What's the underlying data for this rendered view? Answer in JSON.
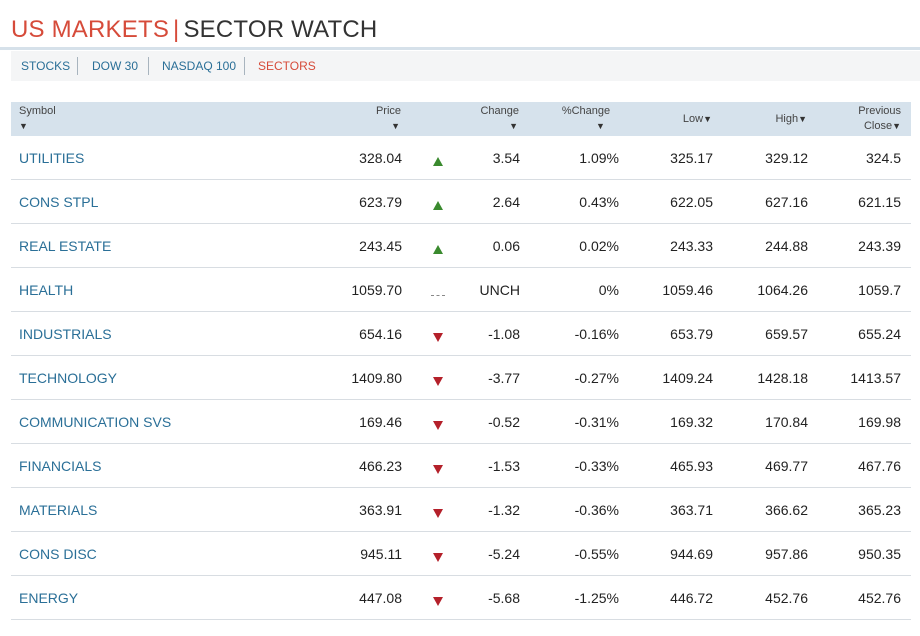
{
  "header": {
    "title_part1": "US MARKETS",
    "separator": "|",
    "title_part2": "SECTOR WATCH"
  },
  "nav": {
    "tabs": [
      {
        "label": "STOCKS",
        "active": false
      },
      {
        "label": "DOW 30",
        "active": false
      },
      {
        "label": "NASDAQ 100",
        "active": false
      },
      {
        "label": "SECTORS",
        "active": true
      }
    ]
  },
  "table": {
    "columns": {
      "symbol": "Symbol",
      "price": "Price",
      "change": "Change",
      "pct_change": "%Change",
      "low": "Low",
      "high": "High",
      "prev_close_1": "Previous",
      "prev_close_2": "Close",
      "sort_arrow": "▼"
    },
    "rows": [
      {
        "symbol": "UTILITIES",
        "price": "328.04",
        "direction": "up",
        "change": "3.54",
        "pct": "1.09%",
        "low": "325.17",
        "high": "329.12",
        "prev": "324.5"
      },
      {
        "symbol": "CONS STPL",
        "price": "623.79",
        "direction": "up",
        "change": "2.64",
        "pct": "0.43%",
        "low": "622.05",
        "high": "627.16",
        "prev": "621.15"
      },
      {
        "symbol": "REAL ESTATE",
        "price": "243.45",
        "direction": "up",
        "change": "0.06",
        "pct": "0.02%",
        "low": "243.33",
        "high": "244.88",
        "prev": "243.39"
      },
      {
        "symbol": "HEALTH",
        "price": "1059.70",
        "direction": "unch",
        "change": "UNCH",
        "pct": "0%",
        "low": "1059.46",
        "high": "1064.26",
        "prev": "1059.7"
      },
      {
        "symbol": "INDUSTRIALS",
        "price": "654.16",
        "direction": "down",
        "change": "-1.08",
        "pct": "-0.16%",
        "low": "653.79",
        "high": "659.57",
        "prev": "655.24"
      },
      {
        "symbol": "TECHNOLOGY",
        "price": "1409.80",
        "direction": "down",
        "change": "-3.77",
        "pct": "-0.27%",
        "low": "1409.24",
        "high": "1428.18",
        "prev": "1413.57"
      },
      {
        "symbol": "COMMUNICATION SVS",
        "price": "169.46",
        "direction": "down",
        "change": "-0.52",
        "pct": "-0.31%",
        "low": "169.32",
        "high": "170.84",
        "prev": "169.98"
      },
      {
        "symbol": "FINANCIALS",
        "price": "466.23",
        "direction": "down",
        "change": "-1.53",
        "pct": "-0.33%",
        "low": "465.93",
        "high": "469.77",
        "prev": "467.76"
      },
      {
        "symbol": "MATERIALS",
        "price": "363.91",
        "direction": "down",
        "change": "-1.32",
        "pct": "-0.36%",
        "low": "363.71",
        "high": "366.62",
        "prev": "365.23"
      },
      {
        "symbol": "CONS DISC",
        "price": "945.11",
        "direction": "down",
        "change": "-5.24",
        "pct": "-0.55%",
        "low": "944.69",
        "high": "957.86",
        "prev": "950.35"
      },
      {
        "symbol": "ENERGY",
        "price": "447.08",
        "direction": "down",
        "change": "-5.68",
        "pct": "-1.25%",
        "low": "446.72",
        "high": "452.76",
        "prev": "452.76"
      }
    ]
  },
  "colors": {
    "accent_red": "#d64b3a",
    "link_blue": "#2a6f97",
    "up_green": "#3a8a2e",
    "down_red": "#b4202a",
    "header_bg": "#d6e2ec"
  },
  "icons": {
    "up": "triangle-up-icon",
    "down": "triangle-down-icon",
    "unch": "dash-icon"
  }
}
